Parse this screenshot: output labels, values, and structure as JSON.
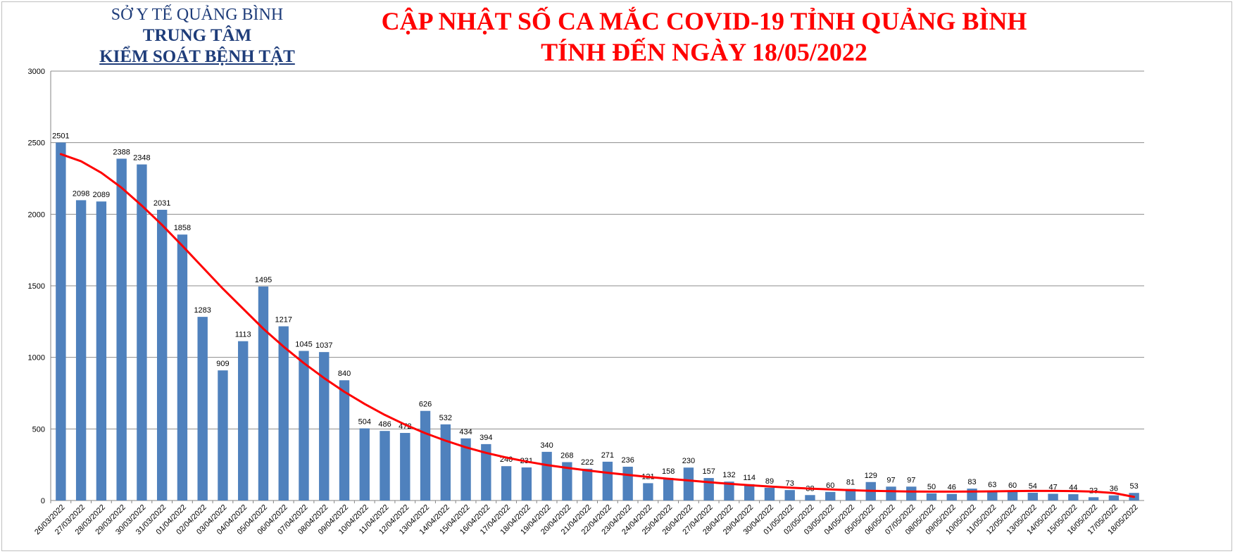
{
  "header": {
    "org_line1": "SỞ Y TẾ QUẢNG BÌNH",
    "org_line2": "TRUNG TÂM",
    "org_line3": "KIỂM SOÁT BỆNH TẬT",
    "title_line1": "CẬP NHẬT SỐ CA MẮC COVID-19 TỈNH QUẢNG BÌNH",
    "title_line2": "TÍNH ĐẾN NGÀY 18/05/2022"
  },
  "chart_data": {
    "type": "bar",
    "title": "",
    "xlabel": "",
    "ylabel": "",
    "ylim": [
      0,
      3000
    ],
    "yticks": [
      0,
      500,
      1000,
      1500,
      2000,
      2500,
      3000
    ],
    "grid": true,
    "legend": "none",
    "bar_color": "#4f81bd",
    "trendline_color": "#ff0000",
    "categories": [
      "26/03/2022",
      "27/03/2022",
      "28/03/2022",
      "29/03/2022",
      "30/03/2022",
      "31/03/2022",
      "01/04/2022",
      "02/04/2022",
      "03/04/2022",
      "04/04/2022",
      "05/04/2022",
      "06/04/2022",
      "07/04/2022",
      "08/04/2022",
      "09/04/2022",
      "10/04/2022",
      "11/04/2022",
      "12/04/2022",
      "13/04/2022",
      "14/04/2022",
      "15/04/2022",
      "16/04/2022",
      "17/04/2022",
      "18/04/2022",
      "19/04/2022",
      "20/04/2022",
      "21/04/2022",
      "22/04/2022",
      "23/04/2022",
      "24/04/2022",
      "25/04/2022",
      "26/04/2022",
      "27/04/2022",
      "28/04/2022",
      "29/04/2022",
      "30/04/2022",
      "01/05/2022",
      "02/05/2022",
      "03/05/2022",
      "04/05/2022",
      "05/05/2022",
      "06/05/2022",
      "07/05/2022",
      "08/05/2022",
      "09/05/2022",
      "10/05/2022",
      "11/05/2022",
      "12/05/2022",
      "13/05/2022",
      "14/05/2022",
      "15/05/2022",
      "16/05/2022",
      "17/05/2022",
      "18/05/2022"
    ],
    "values": [
      2501,
      2098,
      2089,
      2388,
      2348,
      2031,
      1858,
      1283,
      909,
      1113,
      1495,
      1217,
      1045,
      1037,
      840,
      504,
      486,
      472,
      626,
      532,
      434,
      394,
      240,
      231,
      340,
      268,
      222,
      271,
      236,
      121,
      158,
      230,
      157,
      132,
      114,
      89,
      73,
      38,
      60,
      81,
      129,
      97,
      97,
      50,
      46,
      83,
      63,
      60,
      54,
      47,
      44,
      23,
      36,
      53
    ],
    "trendline": [
      2420,
      2370,
      2290,
      2185,
      2060,
      1925,
      1780,
      1630,
      1480,
      1340,
      1200,
      1075,
      960,
      855,
      760,
      675,
      598,
      530,
      470,
      418,
      372,
      333,
      300,
      272,
      248,
      228,
      210,
      194,
      179,
      165,
      152,
      140,
      128,
      117,
      107,
      98,
      90,
      83,
      77,
      72,
      68,
      65,
      63,
      62,
      62,
      63,
      64,
      66,
      67,
      67,
      66,
      62,
      52,
      25
    ]
  }
}
